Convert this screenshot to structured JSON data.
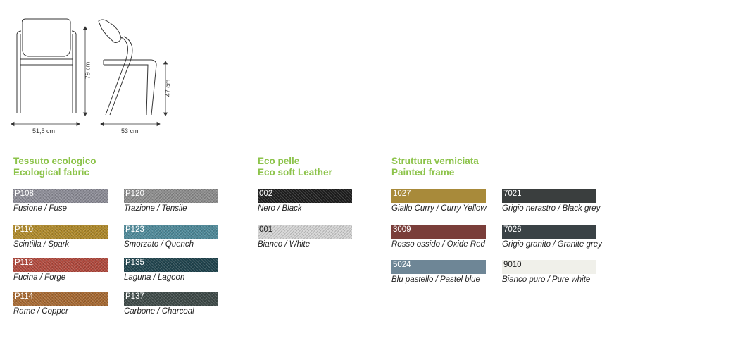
{
  "dimensions": {
    "height_total": "79 cm",
    "seat_height": "47 cm",
    "width": "51,5 cm",
    "depth": "53 cm"
  },
  "fabric": {
    "title_it": "Tessuto ecologico",
    "title_en": "Ecological fabric",
    "items": [
      {
        "code": "P108",
        "label": "Fusione / Fuse",
        "color": "#8e8e98"
      },
      {
        "code": "P120",
        "label": "Trazione / Tensile",
        "color": "#8e8e8e"
      },
      {
        "code": "P110",
        "label": "Scintilla / Spark",
        "color": "#b08a2a"
      },
      {
        "code": "P123",
        "label": "Smorzato / Quench",
        "color": "#4e8a9a"
      },
      {
        "code": "P112",
        "label": "Fucina / Forge",
        "color": "#b24a3e"
      },
      {
        "code": "P135",
        "label": "Laguna / Lagoon",
        "color": "#20444e"
      },
      {
        "code": "P114",
        "label": "Rame / Copper",
        "color": "#a86a32"
      },
      {
        "code": "P137",
        "label": "Carbone / Charcoal",
        "color": "#3e4a48"
      }
    ]
  },
  "leather": {
    "title_it": "Eco pelle",
    "title_en": "Eco soft Leather",
    "items": [
      {
        "code": "002",
        "label": "Nero / Black",
        "color": "#1e1e1e"
      },
      {
        "code": "001",
        "label": "Bianco / White",
        "color": "#d6d6d6"
      }
    ]
  },
  "frame": {
    "title_it": "Struttura verniciata",
    "title_en": "Painted frame",
    "items": [
      {
        "code": "1027",
        "label": "Giallo Curry / Curry Yellow",
        "color": "#a88a3a"
      },
      {
        "code": "7021",
        "label": "Grigio nerastro / Black grey",
        "color": "#3a3e3e"
      },
      {
        "code": "3009",
        "label": "Rosso ossido / Oxide Red",
        "color": "#7a3e3a"
      },
      {
        "code": "7026",
        "label": "Grigio granito / Granite grey",
        "color": "#3a4246"
      },
      {
        "code": "5024",
        "label": "Blu pastello / Pastel blue",
        "color": "#6e8696"
      },
      {
        "code": "9010",
        "label": "Bianco puro / Pure white",
        "color": "#f0f0ea"
      }
    ]
  }
}
